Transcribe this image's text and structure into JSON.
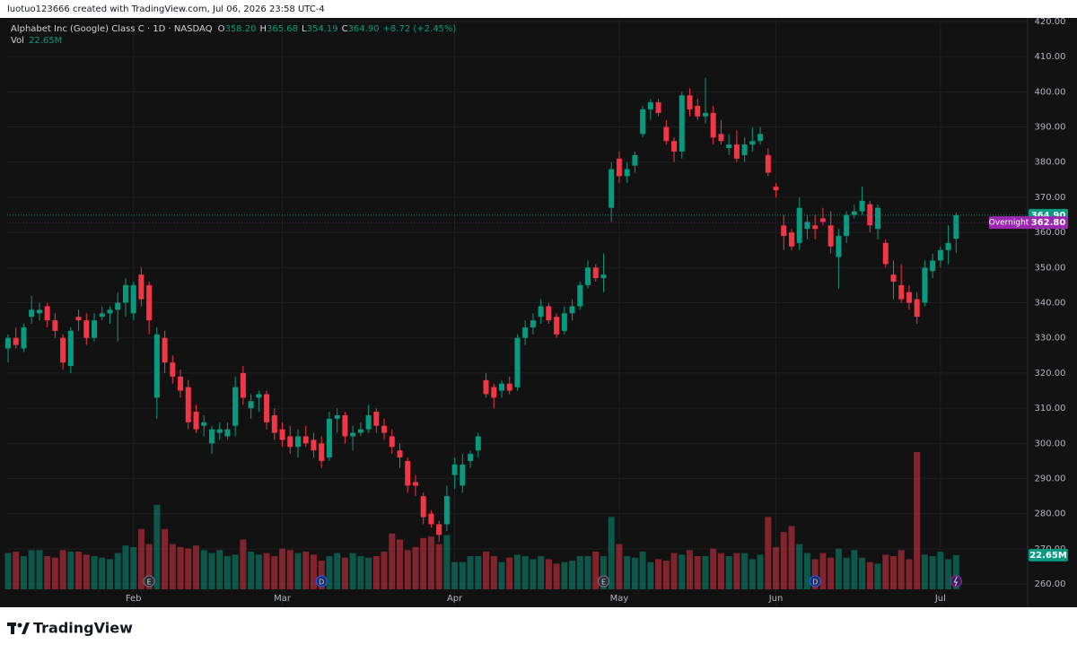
{
  "header": "luotuo123666 created with TradingView.com, Jul 06, 2026 23:58 UTC-4",
  "footer": "TradingView",
  "chart_data": {
    "type": "candlestick",
    "legend": {
      "title": "Alphabet Inc (Google) Class C · 1D · NASDAQ",
      "items": [
        {
          "key": "O",
          "value": "358.20"
        },
        {
          "key": "H",
          "value": "365.68"
        },
        {
          "key": "L",
          "value": "354.19"
        },
        {
          "key": "C",
          "value": "364.90"
        }
      ],
      "change": "+8.72 (+2.45%)",
      "vol_key": "Vol",
      "vol_value": "22.65M"
    },
    "categories": [
      null,
      null,
      null,
      null,
      null,
      null,
      null,
      null,
      null,
      null,
      null,
      null,
      null,
      null,
      null,
      null,
      "Feb",
      null,
      null,
      null,
      null,
      null,
      null,
      null,
      null,
      null,
      null,
      null,
      null,
      null,
      null,
      null,
      null,
      null,
      null,
      "Mar",
      null,
      null,
      null,
      null,
      null,
      null,
      null,
      null,
      null,
      null,
      null,
      null,
      null,
      null,
      null,
      null,
      null,
      null,
      null,
      null,
      null,
      "Apr",
      null,
      null,
      null,
      null,
      null,
      null,
      null,
      null,
      null,
      null,
      null,
      null,
      null,
      null,
      null,
      null,
      null,
      null,
      null,
      null,
      "May",
      null,
      null,
      null,
      null,
      null,
      null,
      null,
      null,
      null,
      null,
      null,
      null,
      null,
      null,
      null,
      null,
      null,
      null,
      null,
      "Jun",
      null,
      null,
      null,
      null,
      null,
      null,
      null,
      null,
      null,
      null,
      null,
      null,
      null,
      null,
      null,
      null,
      null,
      null,
      null,
      null,
      "Jul",
      null,
      null
    ],
    "open": [
      327,
      330,
      327,
      336,
      337,
      339,
      335,
      330,
      322,
      336,
      335,
      330,
      336,
      337,
      338,
      340,
      337,
      348,
      345,
      313,
      330,
      323,
      319,
      316,
      309,
      305,
      300,
      303,
      302,
      305,
      320,
      310,
      313,
      314,
      308,
      304,
      302,
      299,
      302,
      301,
      300,
      296,
      307,
      308,
      302,
      303,
      304,
      309,
      305,
      302,
      298,
      295,
      289,
      285,
      280,
      277,
      277,
      291,
      288,
      295,
      298,
      318,
      316,
      315,
      317,
      316,
      330,
      333,
      336,
      339,
      336,
      332,
      337,
      339,
      345,
      350,
      347,
      367,
      381,
      376,
      379,
      388,
      395,
      397,
      390,
      386,
      383,
      399,
      396,
      393,
      394,
      388,
      384,
      385,
      382,
      385,
      386,
      382,
      373,
      362,
      360,
      357,
      361,
      362,
      364,
      362,
      353,
      359,
      365,
      366,
      368,
      361,
      357,
      348,
      345,
      343,
      341,
      340,
      349,
      352,
      355,
      358.2
    ],
    "high": [
      331,
      333,
      334,
      342,
      340,
      340,
      337,
      331,
      333,
      338,
      337,
      337,
      339,
      339,
      343,
      347,
      346,
      350,
      346,
      333,
      332,
      325,
      321,
      318,
      311,
      308,
      305,
      306,
      306,
      319,
      322,
      314,
      315,
      315,
      310,
      306,
      305,
      304,
      305,
      303,
      302,
      309,
      310,
      309,
      305,
      306,
      311,
      310,
      307,
      304,
      300,
      296,
      291,
      286,
      281,
      278,
      288,
      296,
      297,
      298,
      303,
      320,
      317,
      318,
      319,
      331,
      335,
      337,
      341,
      340,
      337,
      339,
      341,
      346,
      352,
      351,
      354,
      380,
      383,
      380,
      383,
      396,
      398,
      398,
      392,
      387,
      400,
      401,
      398,
      404,
      396,
      392,
      388,
      389,
      387,
      390,
      390,
      384,
      374,
      365,
      361,
      370,
      365,
      365,
      367,
      366,
      361,
      366,
      368,
      373,
      369,
      368,
      358,
      352,
      351,
      345,
      343,
      352,
      354,
      356,
      362,
      365.68
    ],
    "low": [
      323,
      327,
      326,
      334,
      335,
      333,
      330,
      321,
      320,
      332,
      328,
      329,
      335,
      334,
      329,
      336,
      335,
      339,
      331,
      307,
      320,
      317,
      313,
      304,
      303,
      302,
      297,
      301,
      301,
      302,
      311,
      307,
      309,
      304,
      301,
      299,
      297,
      296,
      299,
      296,
      293,
      295,
      303,
      300,
      298,
      302,
      303,
      303,
      301,
      297,
      293,
      286,
      285,
      277,
      276,
      272,
      275,
      287,
      286,
      293,
      296,
      313,
      310,
      313,
      314,
      315,
      328,
      331,
      334,
      334,
      330,
      331,
      335,
      338,
      344,
      346,
      343,
      363,
      374,
      374,
      377,
      387,
      392,
      393,
      385,
      380,
      381,
      393,
      392,
      391,
      385,
      385,
      382,
      380,
      380,
      383,
      385,
      376,
      370,
      355,
      355,
      355,
      358,
      358,
      362,
      354,
      344,
      357,
      364,
      365,
      360,
      358,
      350,
      341,
      340,
      338,
      334,
      339,
      347,
      350,
      351,
      354.19
    ],
    "close": [
      330,
      328,
      333,
      338,
      338,
      335,
      332,
      323,
      332,
      335,
      330,
      335,
      337,
      338,
      340,
      345,
      345,
      341,
      335,
      331,
      323,
      319,
      315,
      306,
      304,
      306,
      304,
      304,
      304,
      316,
      313,
      312,
      314,
      306,
      303,
      301,
      299,
      302,
      300,
      298,
      295,
      307,
      308,
      302,
      303,
      304,
      308,
      305,
      303,
      299,
      296,
      288,
      288,
      279,
      277,
      274,
      285,
      294,
      294,
      297,
      302,
      314,
      313,
      317,
      315,
      330,
      333,
      335,
      339,
      335,
      331,
      337,
      339,
      345,
      350,
      347,
      348,
      378,
      376,
      378,
      382,
      395,
      397,
      394,
      386,
      383,
      399,
      395,
      393,
      394,
      387,
      386,
      385,
      381,
      385,
      386,
      388,
      377,
      372,
      359,
      356,
      367,
      363,
      361,
      363,
      356,
      359,
      365,
      366,
      369,
      362,
      367,
      351,
      346,
      341,
      340,
      336,
      350,
      352,
      355,
      357,
      364.9
    ],
    "volume": [
      24,
      25,
      22,
      26,
      26,
      22,
      21,
      26,
      25,
      25,
      23,
      22,
      21,
      20,
      24,
      29,
      28,
      40,
      30,
      56,
      40,
      30,
      28,
      27,
      29,
      26,
      24,
      26,
      22,
      23,
      33,
      25,
      23,
      24,
      22,
      27,
      26,
      24,
      25,
      23,
      19,
      22,
      24,
      21,
      24,
      22,
      21,
      22,
      25,
      37,
      33,
      26,
      28,
      34,
      35,
      30,
      36,
      18,
      18,
      22,
      22,
      25,
      22,
      18,
      21,
      23,
      22,
      20,
      22,
      20,
      17,
      18,
      19,
      22,
      22,
      25,
      22,
      48,
      30,
      22,
      21,
      25,
      18,
      20,
      19,
      24,
      23,
      26,
      22,
      22,
      27,
      24,
      22,
      24,
      24,
      20,
      23,
      48,
      28,
      38,
      42,
      30,
      24,
      20,
      24,
      21,
      27,
      21,
      26,
      21,
      18,
      17,
      23,
      22,
      26,
      20,
      91,
      23,
      22,
      25,
      20,
      22.65
    ],
    "volume_last_label": "22.65M",
    "last_price_label": "364.90",
    "overnight": {
      "label": "Overnight",
      "price": 362.8,
      "price_label": "362.80"
    },
    "events": [
      {
        "label": "E",
        "at": 18
      },
      {
        "label": "D",
        "at": 40
      },
      {
        "label": "E",
        "at": 76
      },
      {
        "label": "D",
        "at": 103
      }
    ],
    "up_color": "#089981",
    "down_color": "#f23645",
    "overnight_color": "#9c27b0",
    "ylim": [
      258.5,
      421
    ],
    "yticks": [
      {
        "value": 260,
        "label": "260.00"
      },
      {
        "value": 270,
        "label": "270.00"
      },
      {
        "value": 280,
        "label": "280.00"
      },
      {
        "value": 290,
        "label": "290.00"
      },
      {
        "value": 300,
        "label": "300.00"
      },
      {
        "value": 310,
        "label": "310.00"
      },
      {
        "value": 320,
        "label": "320.00"
      },
      {
        "value": 330,
        "label": "330.00"
      },
      {
        "value": 340,
        "label": "340.00"
      },
      {
        "value": 350,
        "label": "350.00"
      },
      {
        "value": 360,
        "label": "360.00"
      },
      {
        "value": 370,
        "label": "370.00"
      },
      {
        "value": 380,
        "label": "380.00"
      },
      {
        "value": 390,
        "label": "390.00"
      },
      {
        "value": 400,
        "label": "400.00"
      },
      {
        "value": 410,
        "label": "410.00"
      },
      {
        "value": 420,
        "label": "420.00"
      }
    ],
    "grid": true
  }
}
